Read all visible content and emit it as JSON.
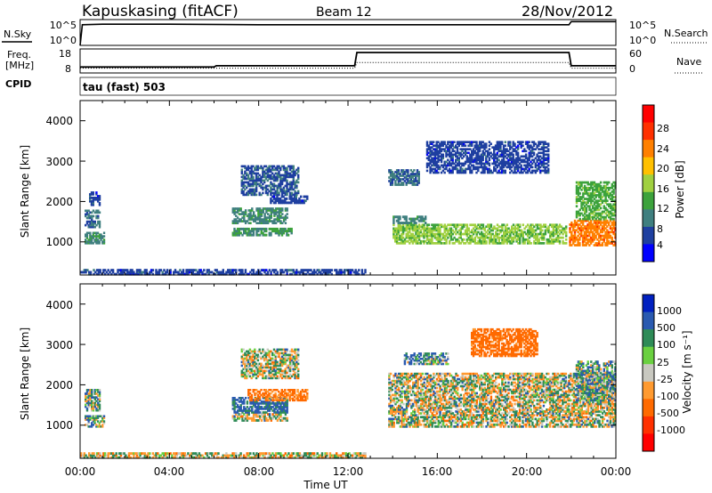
{
  "header": {
    "station": "Kapuskasing (fitACF)",
    "beam": "Beam 12",
    "date": "28/Nov/2012"
  },
  "noise_panel": {
    "left_label": "N.Sky",
    "left_ticks": [
      "10^5",
      "10^0"
    ],
    "right_ticks": [
      "10^5",
      "10^0"
    ],
    "right_label": "N.Search"
  },
  "freq_panel": {
    "left_label_1": "Freq.",
    "left_label_2": "[MHz]",
    "left_ticks": [
      "18",
      "8"
    ],
    "right_ticks": [
      "60",
      "0"
    ],
    "right_label": "Nave"
  },
  "cpid": {
    "label": "CPID",
    "value": "tau (fast) 503"
  },
  "x_axis": {
    "ticks": [
      "00:00",
      "04:00",
      "08:00",
      "12:00",
      "16:00",
      "20:00",
      "00:00"
    ],
    "label": "Time UT"
  },
  "power_panel": {
    "ylabel": "Slant Range [km]",
    "yticks": [
      "4000",
      "3000",
      "2000",
      "1000"
    ],
    "colorbar_label": "Power [dB]",
    "colorbar_ticks": [
      "28",
      "24",
      "20",
      "16",
      "12",
      "8",
      "4"
    ]
  },
  "velocity_panel": {
    "ylabel": "Slant Range [km]",
    "yticks": [
      "4000",
      "3000",
      "2000",
      "1000"
    ],
    "colorbar_label": "Velocity [m s⁻¹]",
    "colorbar_ticks": [
      "1000",
      "500",
      "100",
      "25",
      "-25",
      "-100",
      "-500",
      "-1000"
    ]
  },
  "colors": {
    "power_scale": [
      "#0000ff",
      "#1e3fa0",
      "#3f7f7f",
      "#3ca23c",
      "#a0d040",
      "#ffc000",
      "#ff8000",
      "#ff3000",
      "#ff0000"
    ],
    "velocity_scale": [
      "#0020c0",
      "#2a5ab0",
      "#2e8b57",
      "#6ad040",
      "#c8c8c0",
      "#ff9a30",
      "#ff6a00",
      "#ff3000",
      "#ff0000"
    ]
  },
  "chart_data": [
    {
      "type": "line",
      "title": "N.Sky / N.Search",
      "x": [
        0.0,
        0.1,
        1.0,
        4.0,
        8.0,
        12.0,
        16.0,
        20.0,
        21.9,
        22.0,
        24.0
      ],
      "y_log10": [
        0,
        4,
        4.1,
        4.1,
        4.0,
        4.0,
        4.0,
        4.0,
        4.0,
        4.6,
        4.6
      ],
      "xlim": [
        0,
        24
      ]
    },
    {
      "type": "line",
      "title": "Freq / Nave",
      "series": [
        {
          "values_x": [
            0,
            6,
            6.1,
            12.3,
            12.4,
            21.9,
            22.0,
            24
          ],
          "values_y": [
            10.5,
            10.5,
            11,
            11,
            16.5,
            16.5,
            11,
            11
          ]
        },
        {
          "values_x": [
            0,
            12.3,
            12.4,
            21.9,
            22.0,
            24
          ],
          "values_y": [
            12,
            12,
            26,
            26,
            12,
            12
          ]
        }
      ],
      "xlim": [
        0,
        24
      ]
    },
    {
      "type": "heatmap",
      "title": "Power [dB]",
      "xlabel": "Time UT",
      "ylabel": "Slant Range [km]",
      "xlim": [
        0,
        24
      ],
      "ylim": [
        180,
        4500
      ],
      "zlim": [
        0,
        30
      ],
      "blobs": [
        [
          0.2,
          1.1,
          950,
          1250,
          9
        ],
        [
          0.2,
          0.9,
          1350,
          1800,
          7
        ],
        [
          0.4,
          0.9,
          1900,
          2250,
          5
        ],
        [
          6.8,
          9.5,
          1150,
          1350,
          10
        ],
        [
          6.8,
          9.3,
          1450,
          1850,
          9
        ],
        [
          7.2,
          9.8,
          2150,
          2900,
          6
        ],
        [
          8.5,
          10.2,
          1950,
          2150,
          5
        ],
        [
          14.0,
          21.8,
          950,
          1450,
          14
        ],
        [
          14.0,
          15.5,
          1450,
          1650,
          9
        ],
        [
          13.8,
          15.2,
          2400,
          2800,
          7
        ],
        [
          15.5,
          21.0,
          2700,
          3500,
          5
        ],
        [
          21.9,
          24.0,
          900,
          1550,
          22
        ],
        [
          22.2,
          24.0,
          1550,
          2500,
          12
        ],
        [
          0.0,
          12.8,
          180,
          330,
          5
        ]
      ]
    },
    {
      "type": "heatmap",
      "title": "Velocity [m s⁻¹]",
      "xlabel": "Time UT",
      "ylabel": "Slant Range [km]",
      "xlim": [
        0,
        24
      ],
      "ylim": [
        180,
        4500
      ],
      "zlim": [
        -1000,
        1000
      ],
      "blobs": [
        [
          0.2,
          1.1,
          950,
          1250,
          60
        ],
        [
          0.2,
          0.9,
          1350,
          1900,
          40
        ],
        [
          6.8,
          9.3,
          1100,
          1300,
          0
        ],
        [
          6.8,
          9.3,
          1300,
          1700,
          150
        ],
        [
          7.5,
          10.2,
          1600,
          1900,
          -150
        ],
        [
          7.2,
          9.8,
          2150,
          2900,
          0
        ],
        [
          13.8,
          24.0,
          950,
          1600,
          0
        ],
        [
          13.8,
          24.0,
          1600,
          2300,
          0
        ],
        [
          14.5,
          16.5,
          2500,
          2800,
          80
        ],
        [
          17.5,
          20.5,
          2700,
          3400,
          -200
        ],
        [
          22.2,
          24.0,
          1600,
          2600,
          60
        ],
        [
          0.0,
          12.8,
          180,
          330,
          -20
        ]
      ]
    }
  ]
}
